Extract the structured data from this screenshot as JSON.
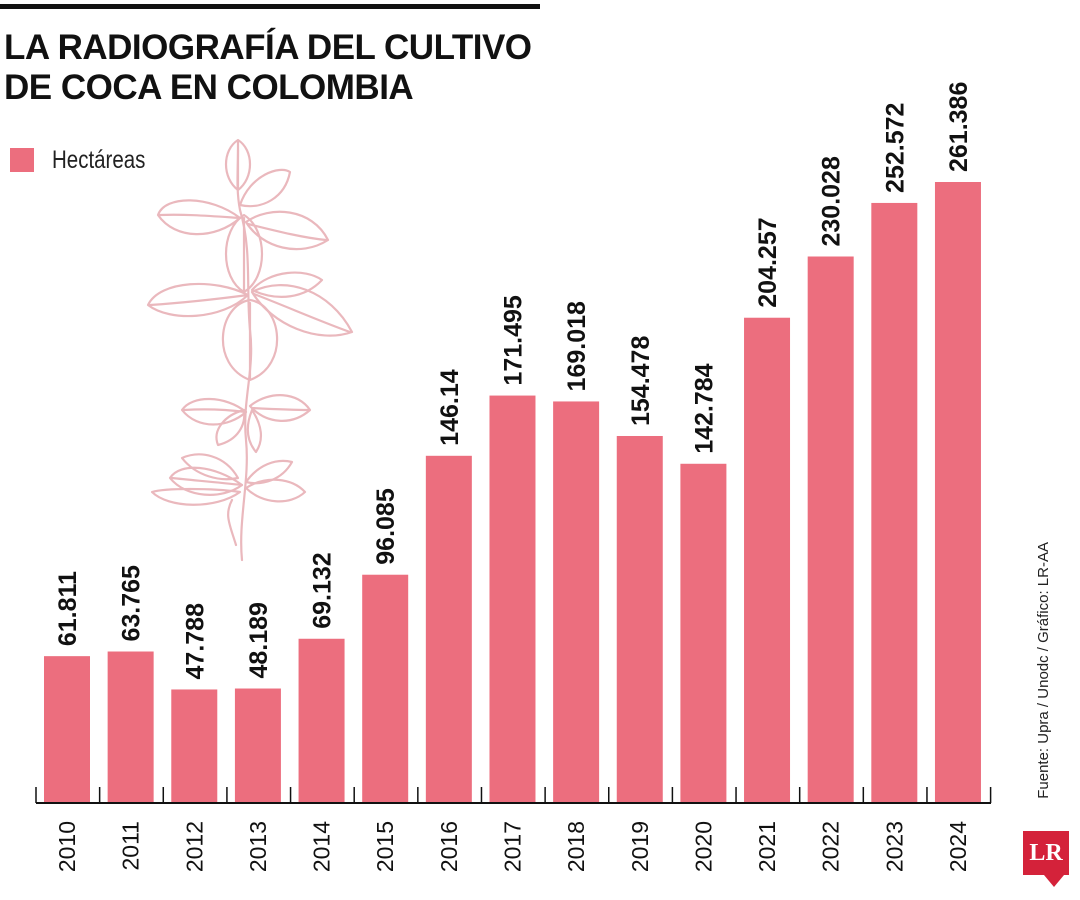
{
  "title_lines": [
    "LA RADIOGRAFÍA DEL CULTIVO",
    "DE COCA EN COLOMBIA"
  ],
  "legend": {
    "label": "Hectáreas",
    "color": "#ec6e7e"
  },
  "source": "Fuente: Upra / Unodc / Gráfico: LR-AA",
  "logo_text": "LR",
  "colors": {
    "bar": "#ec6e7e",
    "axis": "#111111",
    "logo": "#d4223a",
    "illustration": "#eab8bd"
  },
  "decoration_icon": "coca-plant-illustration",
  "chart_data": {
    "type": "bar",
    "categories": [
      "2010",
      "2011",
      "2012",
      "2013",
      "2014",
      "2015",
      "2016",
      "2017",
      "2018",
      "2019",
      "2020",
      "2021",
      "2022",
      "2023",
      "2024"
    ],
    "series": [
      {
        "name": "Hectáreas",
        "values": [
          61.811,
          63.765,
          47.788,
          48.189,
          69.132,
          96.085,
          146.14,
          171.495,
          169.018,
          154.478,
          142.784,
          204.257,
          230.028,
          252.572,
          261.386
        ],
        "labels": [
          "61.811",
          "63.765",
          "47.788",
          "48.189",
          "69.132",
          "96.085",
          "146.14",
          "171.495",
          "169.018",
          "154.478",
          "142.784",
          "204.257",
          "230.028",
          "252.572",
          "261.386"
        ]
      }
    ],
    "title": "LA RADIOGRAFÍA DEL CULTIVO DE COCA EN COLOMBIA",
    "xlabel": "",
    "ylabel": "",
    "ylim": [
      0,
      261.386
    ],
    "grid": false,
    "legend_position": "top-left"
  }
}
